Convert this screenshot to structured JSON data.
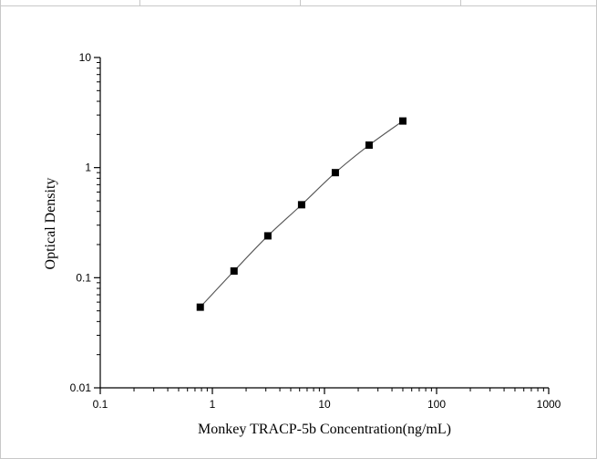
{
  "colors": {
    "axis": "#000000",
    "curve": "#555555",
    "marker": "#000000",
    "frame": "#c8c8c8"
  },
  "chart_data": {
    "type": "scatter",
    "title": "",
    "xlabel": "Monkey TRACP-5b Concentration(ng/mL)",
    "ylabel": "Optical Density",
    "x_scale": "log",
    "y_scale": "log",
    "xlim": [
      0.1,
      1000
    ],
    "ylim": [
      0.01,
      10
    ],
    "x_ticks": [
      {
        "value": 0.1,
        "label": "0.1"
      },
      {
        "value": 1,
        "label": "1"
      },
      {
        "value": 10,
        "label": "10"
      },
      {
        "value": 100,
        "label": "100"
      },
      {
        "value": 1000,
        "label": "1000"
      }
    ],
    "y_ticks": [
      {
        "value": 0.01,
        "label": "0.01"
      },
      {
        "value": 0.1,
        "label": "0.1"
      },
      {
        "value": 1,
        "label": "1"
      },
      {
        "value": 10,
        "label": "10"
      }
    ],
    "grid": false,
    "legend": "none",
    "series": [
      {
        "marker": "square",
        "x": [
          0.78,
          1.56,
          3.125,
          6.25,
          12.5,
          25,
          50
        ],
        "y": [
          0.054,
          0.115,
          0.24,
          0.46,
          0.9,
          1.6,
          2.65
        ]
      }
    ],
    "fit_curve": true
  }
}
